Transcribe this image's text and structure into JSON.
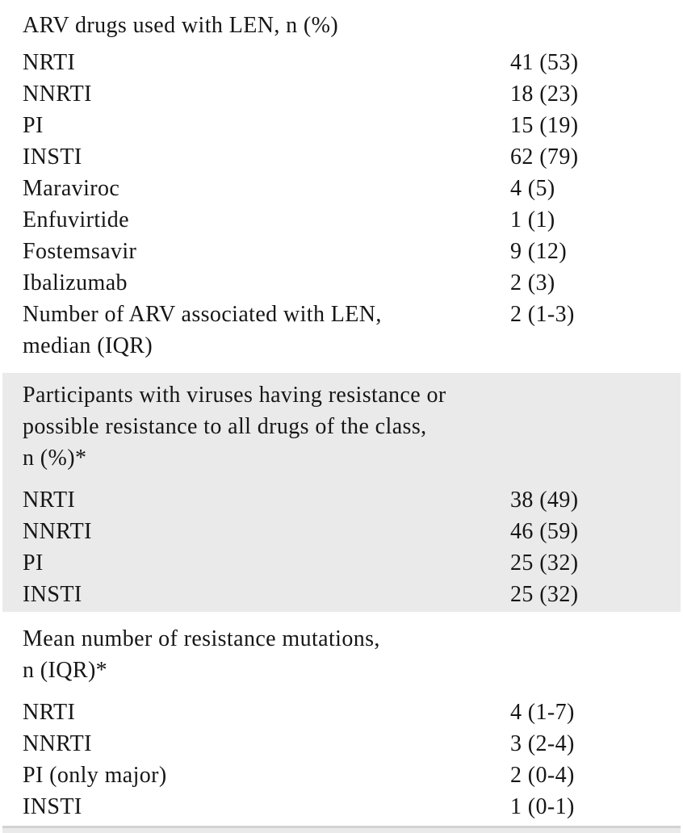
{
  "colors": {
    "background": "#ffffff",
    "text": "#161616",
    "shaded_section_bg": "#eaeaea",
    "bottom_bar_top_line": "#d2d2d2",
    "bottom_bar_bg": "#eaeaea"
  },
  "table": {
    "sections": [
      {
        "header_lines": [
          "ARV drugs used with LEN, n (%)"
        ],
        "shaded": false,
        "rows": [
          {
            "label": "NRTI",
            "value": "41 (53)"
          },
          {
            "label": "NNRTI",
            "value": "18 (23)"
          },
          {
            "label": "PI",
            "value": "15 (19)"
          },
          {
            "label": "INSTI",
            "value": "62 (79)"
          },
          {
            "label": "Maraviroc",
            "value": "4 (5)"
          },
          {
            "label": "Enfuvirtide",
            "value": "1 (1)"
          },
          {
            "label": "Fostemsavir",
            "value": "9 (12)"
          },
          {
            "label": "Ibalizumab",
            "value": "2 (3)"
          },
          {
            "label": "Number of ARV associated with LEN,",
            "label2": "median (IQR)",
            "value": "2 (1-3)"
          }
        ]
      },
      {
        "header_lines": [
          "Participants with viruses having resistance or",
          "possible resistance to all drugs of the class,",
          "n (%)*"
        ],
        "shaded": true,
        "rows": [
          {
            "label": "NRTI",
            "value": "38 (49)"
          },
          {
            "label": "NNRTI",
            "value": "46 (59)"
          },
          {
            "label": "PI",
            "value": "25 (32)"
          },
          {
            "label": "INSTI",
            "value": "25 (32)"
          }
        ]
      },
      {
        "header_lines": [
          "Mean number of resistance mutations,",
          "n (IQR)*"
        ],
        "shaded": false,
        "rows": [
          {
            "label": "NRTI",
            "value": "4 (1-7)"
          },
          {
            "label": "NNRTI",
            "value": "3 (2-4)"
          },
          {
            "label": "PI (only major)",
            "value": "2 (0-4)"
          },
          {
            "label": "INSTI",
            "value": "1 (0-1)"
          }
        ]
      }
    ]
  }
}
